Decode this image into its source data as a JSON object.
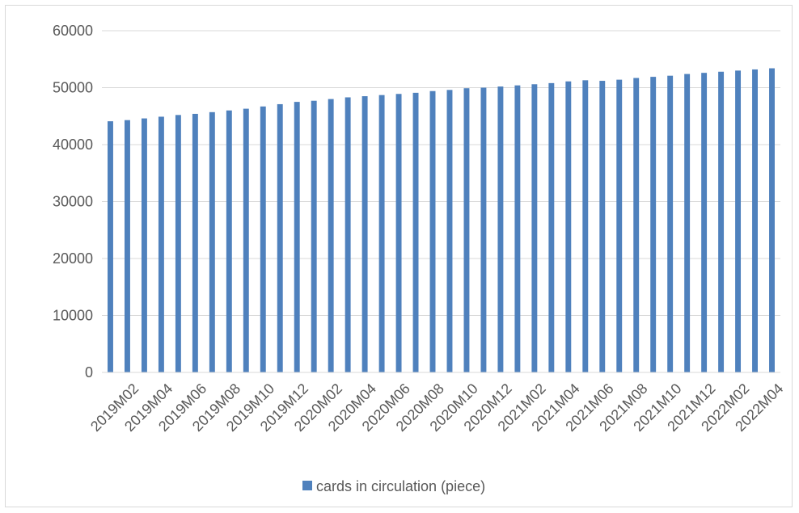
{
  "chart_data": {
    "type": "bar",
    "title": "",
    "xlabel": "",
    "ylabel": "",
    "ylim": [
      0,
      60000
    ],
    "yticks": [
      0,
      10000,
      20000,
      30000,
      40000,
      50000,
      60000
    ],
    "grid": true,
    "legend_position": "bottom",
    "color": "#4f81bd",
    "categories": [
      "2019M01",
      "2019M02",
      "2019M03",
      "2019M04",
      "2019M05",
      "2019M06",
      "2019M07",
      "2019M08",
      "2019M09",
      "2019M10",
      "2019M11",
      "2019M12",
      "2020M01",
      "2020M02",
      "2020M03",
      "2020M04",
      "2020M05",
      "2020M06",
      "2020M07",
      "2020M08",
      "2020M09",
      "2020M10",
      "2020M11",
      "2020M12",
      "2021M01",
      "2021M02",
      "2021M03",
      "2021M04",
      "2021M05",
      "2021M06",
      "2021M07",
      "2021M08",
      "2021M09",
      "2021M10",
      "2021M11",
      "2021M12",
      "2022M01",
      "2022M02",
      "2022M03",
      "2022M04"
    ],
    "tick_labels": [
      "2019M02",
      "2019M04",
      "2019M06",
      "2019M08",
      "2019M10",
      "2019M12",
      "2020M02",
      "2020M04",
      "2020M06",
      "2020M08",
      "2020M10",
      "2020M12",
      "2021M02",
      "2021M04",
      "2021M06",
      "2021M08",
      "2021M10",
      "2021M12",
      "2022M02",
      "2022M04"
    ],
    "series": [
      {
        "name": "cards in circulation (piece)",
        "values": [
          44100,
          44300,
          44600,
          44900,
          45200,
          45400,
          45700,
          46000,
          46300,
          46700,
          47100,
          47500,
          47700,
          48000,
          48300,
          48500,
          48700,
          48900,
          49100,
          49400,
          49600,
          49900,
          50000,
          50200,
          50400,
          50600,
          50800,
          51100,
          51300,
          51200,
          51400,
          51700,
          51900,
          52100,
          52400,
          52600,
          52800,
          53000,
          53200,
          53400
        ]
      }
    ]
  }
}
